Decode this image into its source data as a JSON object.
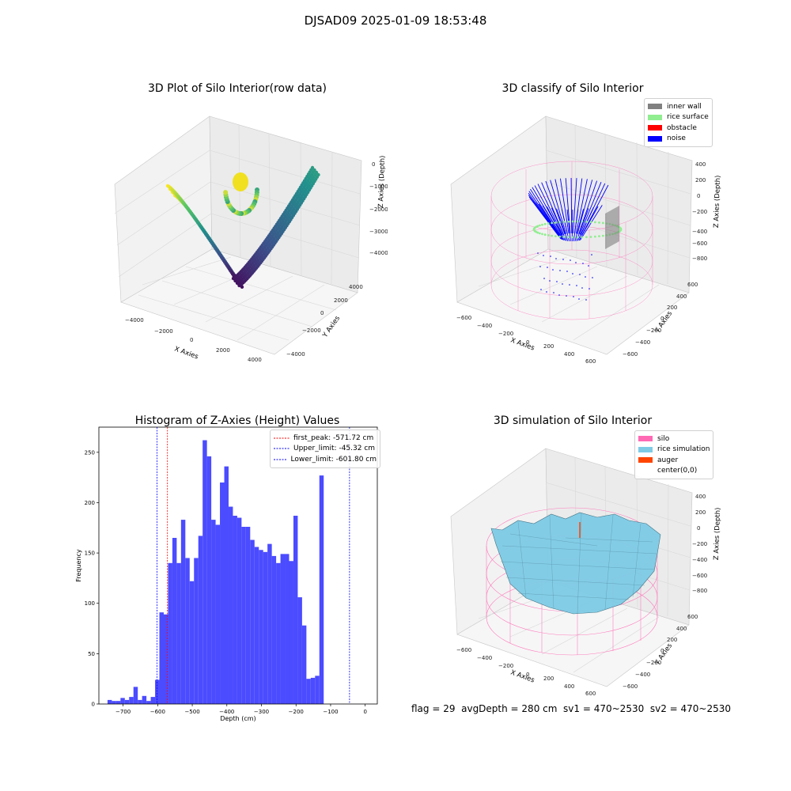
{
  "page": {
    "title": "DJSAD09 2025-01-09 18:53:48"
  },
  "status": {
    "text": "flag = 29  avgDepth = 280 cm  sv1 = 470~2530  sv2 = 470~2530"
  },
  "colors": {
    "hist_bar": "#4b4bff",
    "first_peak_line": "#ff0000",
    "limit_line": "#0000ff",
    "inner_wall": "#808080",
    "rice_surface": "#90ee90",
    "obstacle": "#ff0000",
    "noise": "#0000ff",
    "silo": "#ff69b4",
    "rice_simulation": "#7ecbe6",
    "auger": "#ff4500",
    "center": "#ffffff"
  },
  "chart_data": [
    {
      "type": "scatter3d",
      "title": "3D Plot of Silo Interior(row data)",
      "xlabel": "X Axies",
      "ylabel": "Y Axies",
      "zlabel": "Z Axies (Depth)",
      "x_ticks": [
        "−4000",
        "−2000",
        "0",
        "2000",
        "4000"
      ],
      "y_ticks": [
        "−4000",
        "−2000",
        "0",
        "2000",
        "4000"
      ],
      "z_ticks": [
        "−4000",
        "−3000",
        "−2000",
        "−1000",
        "0"
      ],
      "colormap": "viridis"
    },
    {
      "type": "scatter3d",
      "title": "3D classify of Silo Interior",
      "xlabel": "X Axies",
      "ylabel": "Y Axies",
      "zlabel": "Z Axies (Depth)",
      "x_ticks": [
        "−600",
        "−400",
        "−200",
        "0",
        "200",
        "400",
        "600"
      ],
      "y_ticks": [
        "−600",
        "−400",
        "−200",
        "0",
        "200",
        "400",
        "600"
      ],
      "z_ticks": [
        "−800",
        "−600",
        "−400",
        "−200",
        "0",
        "200",
        "400"
      ],
      "legend": [
        "inner wall",
        "rice surface",
        "obstacle",
        "noise"
      ]
    },
    {
      "type": "bar",
      "title": "Histogram of Z-Axies (Height) Values",
      "xlabel": "Depth (cm)",
      "ylabel": "Frequency",
      "xlim": [
        -770,
        35
      ],
      "ylim": [
        0,
        275
      ],
      "x_ticks": [
        -700,
        -600,
        -500,
        -400,
        -300,
        -200,
        -100,
        0
      ],
      "x_tick_labels": [
        "−700",
        "−600",
        "−500",
        "−400",
        "−300",
        "−200",
        "−100",
        "0"
      ],
      "y_ticks": [
        0,
        50,
        100,
        150,
        200,
        250
      ],
      "y_tick_labels": [
        "0",
        "50",
        "100",
        "150",
        "200",
        "250"
      ],
      "bin_start": -745,
      "bin_width": 12.5,
      "values": [
        4,
        3,
        3,
        6,
        4,
        7,
        17,
        4,
        8,
        3,
        7,
        24,
        91,
        89,
        140,
        165,
        140,
        183,
        145,
        122,
        145,
        167,
        262,
        246,
        183,
        178,
        220,
        236,
        196,
        187,
        185,
        176,
        176,
        163,
        156,
        153,
        151,
        159,
        147,
        140,
        149,
        149,
        142,
        187,
        106,
        78,
        25,
        26,
        28,
        227
      ],
      "vlines": [
        {
          "label": "first_peak: -571.72 cm",
          "x": -571.72,
          "color_key": "first_peak_line"
        },
        {
          "label": "Upper_limit: -45.32 cm",
          "x": -45.32,
          "color_key": "limit_line"
        },
        {
          "label": "Lower_limit: -601.80 cm",
          "x": -601.8,
          "color_key": "limit_line"
        }
      ]
    },
    {
      "type": "surface3d",
      "title": "3D simulation of Silo Interior",
      "xlabel": "X Axies",
      "ylabel": "Y Axies",
      "zlabel": "Z Axies (Depth)",
      "x_ticks": [
        "−600",
        "−400",
        "−200",
        "0",
        "200",
        "400",
        "600"
      ],
      "y_ticks": [
        "−600",
        "−400",
        "−200",
        "0",
        "200",
        "400",
        "600"
      ],
      "z_ticks": [
        "−800",
        "−600",
        "−400",
        "−200",
        "0",
        "200",
        "400"
      ],
      "legend": [
        "silo",
        "rice simulation",
        "auger",
        "center(0,0)"
      ]
    }
  ]
}
